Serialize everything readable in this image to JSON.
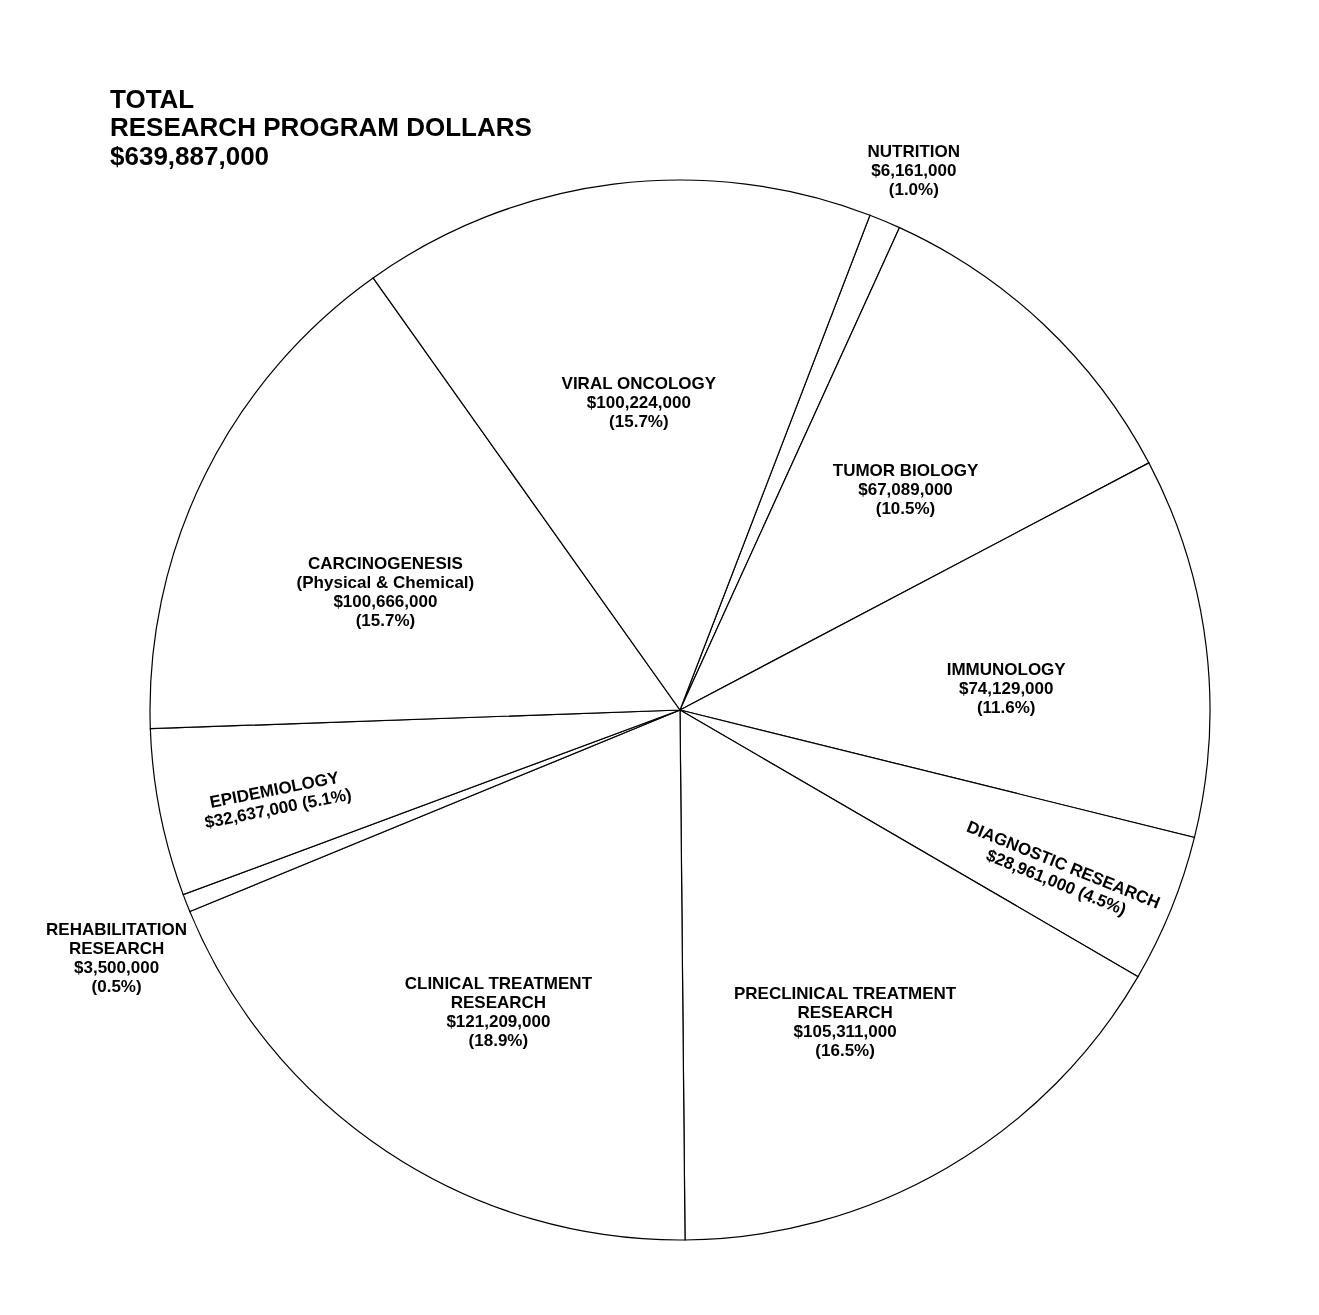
{
  "chart_data": {
    "type": "pie",
    "title": "TOTAL\nRESEARCH PROGRAM DOLLARS",
    "subtitle": "$639,887,000",
    "categories": [
      "NUTRITION",
      "TUMOR BIOLOGY",
      "IMMUNOLOGY",
      "DIAGNOSTIC RESEARCH",
      "PRECLINICAL TREATMENT\nRESEARCH",
      "CLINICAL TREATMENT\nRESEARCH",
      "REHABILITATION\nRESEARCH",
      "EPIDEMIOLOGY",
      "CARCINOGENESIS\n(Physical & Chemical)",
      "VIRAL ONCOLOGY"
    ],
    "values": [
      6161000,
      67089000,
      74129000,
      28961000,
      105311000,
      121209000,
      3500000,
      32637000,
      100666000,
      100224000
    ],
    "value_labels": [
      "$6,161,000\n(1.0%)",
      "$67,089,000\n(10.5%)",
      "$74,129,000\n(11.6%)",
      "$28,961,000 (4.5%)",
      "$105,311,000\n(16.5%)",
      "$121,209,000\n(18.9%)",
      "$3,500,000\n(0.5%)",
      "$32,637,000 (5.1%)",
      "$100,666,000\n(15.7%)",
      "$100,224,000\n(15.7%)"
    ],
    "colors": [
      "#ffffff",
      "#ffffff",
      "#ffffff",
      "#ffffff",
      "#ffffff",
      "#ffffff",
      "#ffffff",
      "#ffffff",
      "#ffffff",
      "#ffffff"
    ]
  }
}
